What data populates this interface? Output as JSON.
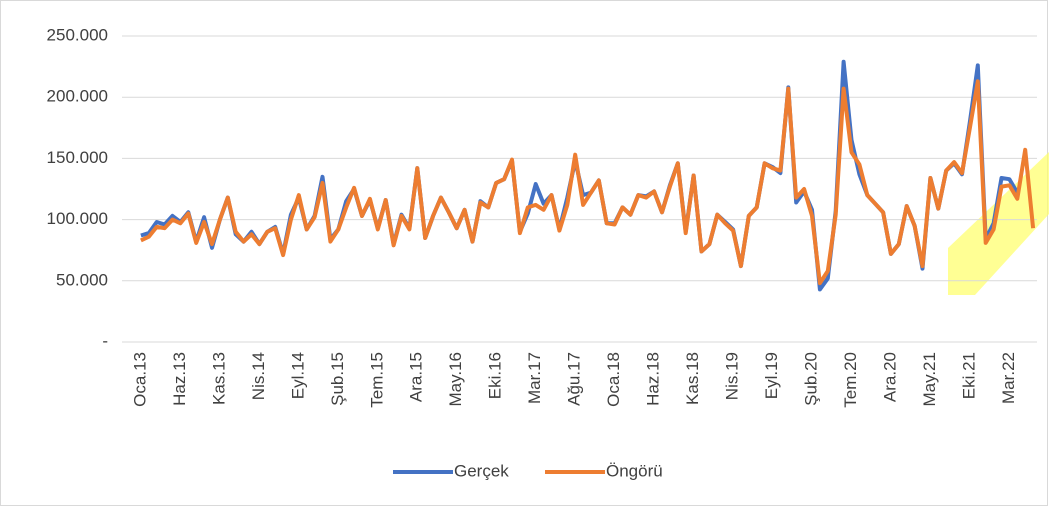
{
  "chart_data": {
    "type": "line",
    "categories": [
      "Oca.13",
      null,
      null,
      null,
      null,
      "Haz.13",
      null,
      null,
      null,
      null,
      "Kas.13",
      null,
      null,
      null,
      null,
      "Nis.14",
      null,
      null,
      null,
      null,
      "Eyl.14",
      null,
      null,
      null,
      null,
      "Şub.15",
      null,
      null,
      null,
      null,
      "Tem.15",
      null,
      null,
      null,
      null,
      "Ara.15",
      null,
      null,
      null,
      null,
      "May.16",
      null,
      null,
      null,
      null,
      "Eki.16",
      null,
      null,
      null,
      null,
      "Mar.17",
      null,
      null,
      null,
      null,
      "Ağu.17",
      null,
      null,
      null,
      null,
      "Oca.18",
      null,
      null,
      null,
      null,
      "Haz.18",
      null,
      null,
      null,
      null,
      "Kas.18",
      null,
      null,
      null,
      null,
      "Nis.19",
      null,
      null,
      null,
      null,
      "Eyl.19",
      null,
      null,
      null,
      null,
      "Şub.20",
      null,
      null,
      null,
      null,
      "Tem.20",
      null,
      null,
      null,
      null,
      "Ara.20",
      null,
      null,
      null,
      null,
      "May.21",
      null,
      null,
      null,
      null,
      "Eki.21",
      null,
      null,
      null,
      null,
      "Mar.22",
      null,
      null,
      null
    ],
    "series": [
      {
        "name": "Gerçek",
        "color": "#4472c4",
        "values": [
          87000,
          89000,
          98000,
          96000,
          103000,
          98000,
          106000,
          82000,
          102000,
          77000,
          100000,
          118000,
          88000,
          82000,
          90000,
          80000,
          90000,
          94000,
          72000,
          104000,
          118000,
          92000,
          103000,
          135000,
          84000,
          92000,
          115000,
          125000,
          103000,
          116000,
          93000,
          116000,
          80000,
          104000,
          93000,
          142000,
          85000,
          103000,
          118000,
          106000,
          93000,
          108000,
          82000,
          115000,
          110000,
          130000,
          133000,
          148000,
          90000,
          105000,
          129000,
          113000,
          120000,
          92000,
          118000,
          148000,
          120000,
          122000,
          132000,
          97000,
          97000,
          110000,
          104000,
          120000,
          119000,
          123000,
          106000,
          128000,
          146000,
          90000,
          136000,
          74000,
          80000,
          104000,
          98000,
          92000,
          62000,
          103000,
          110000,
          146000,
          143000,
          138000,
          208000,
          114000,
          123000,
          108000,
          43000,
          52000,
          107000,
          229000,
          165000,
          137000,
          120000,
          113000,
          106000,
          72000,
          80000,
          111000,
          95000,
          60000,
          134000,
          109000,
          140000,
          146000,
          137000,
          180000,
          226000,
          84000,
          97000,
          134000,
          133000,
          122000,
          null,
          null
        ]
      },
      {
        "name": "Öngörü",
        "color": "#ed7d31",
        "values": [
          83000,
          86000,
          94000,
          93000,
          100000,
          97000,
          105000,
          81000,
          98000,
          80000,
          100000,
          118000,
          90000,
          82000,
          88000,
          80000,
          90000,
          93000,
          71000,
          100000,
          120000,
          92000,
          102000,
          130000,
          82000,
          92000,
          110000,
          126000,
          103000,
          117000,
          92000,
          116000,
          79000,
          103000,
          92000,
          142000,
          85000,
          103000,
          118000,
          106000,
          93000,
          108000,
          82000,
          114000,
          110000,
          130000,
          133000,
          149000,
          89000,
          110000,
          112000,
          108000,
          120000,
          91000,
          112000,
          153000,
          112000,
          122000,
          132000,
          97000,
          96000,
          110000,
          104000,
          120000,
          118000,
          123000,
          106000,
          127000,
          146000,
          89000,
          136000,
          74000,
          80000,
          104000,
          97000,
          91000,
          62000,
          103000,
          110000,
          146000,
          142000,
          140000,
          207000,
          118000,
          125000,
          103000,
          48000,
          58000,
          104000,
          207000,
          155000,
          145000,
          120000,
          113000,
          106000,
          72000,
          80000,
          111000,
          95000,
          62000,
          134000,
          109000,
          140000,
          147000,
          138000,
          175000,
          213000,
          81000,
          92000,
          127000,
          128000,
          117000,
          157000,
          93000
        ]
      }
    ],
    "ylim": [
      0,
      250000
    ],
    "yticks": [
      {
        "value": 0,
        "label": "-"
      },
      {
        "value": 50000,
        "label": "50.000"
      },
      {
        "value": 100000,
        "label": "100.000"
      },
      {
        "value": 150000,
        "label": "150.000"
      },
      {
        "value": 200000,
        "label": "200.000"
      },
      {
        "value": 250000,
        "label": "250.000"
      }
    ],
    "grid": true,
    "legend": "bottom"
  }
}
